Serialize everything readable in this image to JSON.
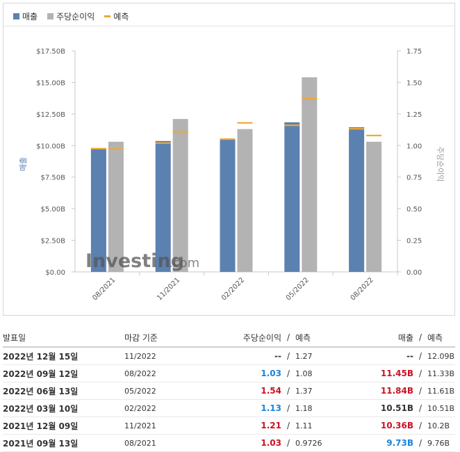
{
  "legend": {
    "revenue": "매출",
    "eps": "주당순이익",
    "forecast": "예측"
  },
  "colors": {
    "revenue": "#5b81b0",
    "eps": "#b3b3b3",
    "forecast": "#f0a830",
    "positive": "#1a83d9",
    "negative": "#cc1122"
  },
  "watermark": {
    "brand": "Investing",
    "suffix": ".com"
  },
  "chart_data": {
    "type": "bar",
    "categories": [
      "08/2021",
      "11/2021",
      "02/2022",
      "05/2022",
      "08/2022"
    ],
    "series": [
      {
        "name": "매출",
        "axis": "left",
        "values": [
          9.73,
          10.36,
          10.51,
          11.84,
          11.45
        ],
        "forecast": [
          9.76,
          10.2,
          10.51,
          11.61,
          11.33
        ]
      },
      {
        "name": "주당순이익",
        "axis": "right",
        "values": [
          1.03,
          1.21,
          1.13,
          1.54,
          1.03
        ],
        "forecast": [
          0.9726,
          1.11,
          1.18,
          1.37,
          1.08
        ]
      }
    ],
    "ylabel": "매출",
    "y2label": "주당순이익",
    "ylim": [
      0,
      17.5
    ],
    "y2lim": [
      0,
      1.75
    ],
    "yticks": [
      "$0.00",
      "$2.50B",
      "$5.00B",
      "$7.50B",
      "$10.00B",
      "$12.50B",
      "$15.00B",
      "$17.50B"
    ],
    "y2ticks": [
      "0.00",
      "0.25",
      "0.50",
      "0.75",
      "1.00",
      "1.25",
      "1.50",
      "1.75"
    ],
    "grid": false,
    "legend_position": "top-left"
  },
  "table": {
    "headers": {
      "date": "발표일",
      "period": "마감 기준",
      "eps": "주당순이익",
      "slash": "/",
      "eps_forecast": "예측",
      "revenue": "매출",
      "revenue_forecast": "예측"
    },
    "rows": [
      {
        "date": "2022년 12월 15일",
        "period": "11/2022",
        "eps": "--",
        "eps_forecast": "1.27",
        "revenue": "--",
        "revenue_forecast": "12.09B",
        "eps_class": "neutral",
        "revenue_class": "neutral"
      },
      {
        "date": "2022년 09월 12일",
        "period": "08/2022",
        "eps": "1.03",
        "eps_forecast": "1.08",
        "revenue": "11.45B",
        "revenue_forecast": "11.33B",
        "eps_class": "pos",
        "revenue_class": "neg"
      },
      {
        "date": "2022년 06월 13일",
        "period": "05/2022",
        "eps": "1.54",
        "eps_forecast": "1.37",
        "revenue": "11.84B",
        "revenue_forecast": "11.61B",
        "eps_class": "neg",
        "revenue_class": "neg"
      },
      {
        "date": "2022년 03월 10일",
        "period": "02/2022",
        "eps": "1.13",
        "eps_forecast": "1.18",
        "revenue": "10.51B",
        "revenue_forecast": "10.51B",
        "eps_class": "pos",
        "revenue_class": "neutral"
      },
      {
        "date": "2021년 12월 09일",
        "period": "11/2021",
        "eps": "1.21",
        "eps_forecast": "1.11",
        "revenue": "10.36B",
        "revenue_forecast": "10.2B",
        "eps_class": "neg",
        "revenue_class": "neg"
      },
      {
        "date": "2021년 09월 13일",
        "period": "08/2021",
        "eps": "1.03",
        "eps_forecast": "0.9726",
        "revenue": "9.73B",
        "revenue_forecast": "9.76B",
        "eps_class": "neg",
        "revenue_class": "pos"
      }
    ]
  }
}
